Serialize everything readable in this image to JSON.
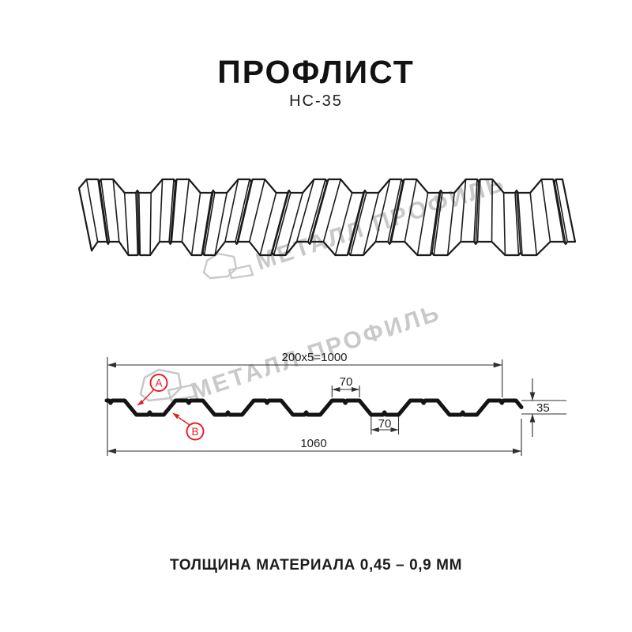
{
  "header": {
    "title": "ПРОФЛИСТ",
    "subtitle": "НС-35"
  },
  "watermark": {
    "text": "МЕТАЛЛ ПРОФИЛЬ",
    "color": "#c9c9c9"
  },
  "section": {
    "labels": {
      "a": "A",
      "b": "B"
    },
    "dimensions": {
      "modular_width": "200x5=1000",
      "rib_top_width": "70",
      "rib_bottom_width": "70",
      "height": "35",
      "overall_width": "1060"
    },
    "accent_color": "#e31e24",
    "line_color": "#1b1b1b"
  },
  "footer": {
    "thickness_note": "ТОЛЩИНА МАТЕРИАЛА 0,45 – 0,9 ММ"
  }
}
